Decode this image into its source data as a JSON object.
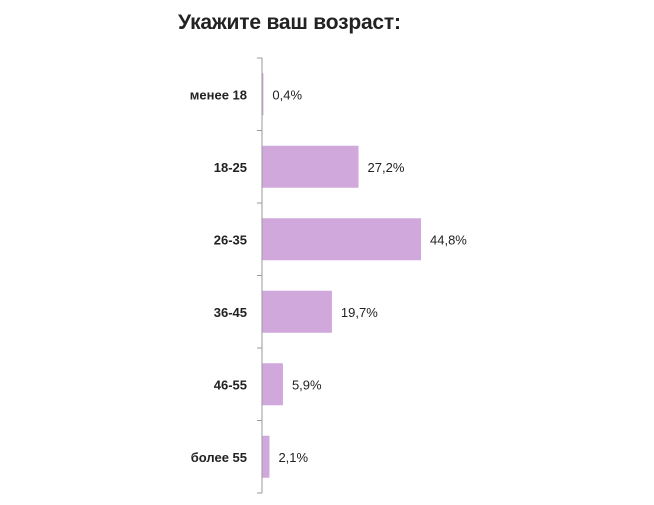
{
  "chart_data": {
    "type": "bar",
    "orientation": "horizontal",
    "title": "Укажите ваш возраст:",
    "categories": [
      "менее 18",
      "18-25",
      "26-35",
      "36-45",
      "46-55",
      "более 55"
    ],
    "values": [
      0.4,
      27.2,
      44.8,
      19.7,
      5.9,
      2.1
    ],
    "value_labels": [
      "0,4%",
      "27,2%",
      "44,8%",
      "19,7%",
      "5,9%",
      "2,1%"
    ],
    "xlabel": "",
    "ylabel": "",
    "grid": false,
    "legend": "none",
    "bar_color": "#d0a8dc",
    "axis_color": "#9a9a9a",
    "text_color": "#222222"
  }
}
